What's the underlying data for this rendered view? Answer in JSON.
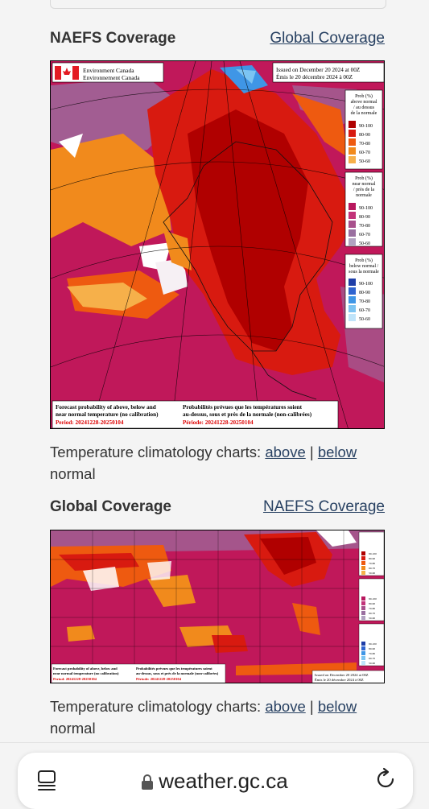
{
  "naefs": {
    "title": "NAEFS Coverage",
    "link": "Global Coverage",
    "map": {
      "agency_en": "Environment Canada",
      "agency_fr": "Environnement Canada",
      "issued_en": "Issued on December 20 2024 at 00Z",
      "issued_fr": "Émis le 20 décembre 2024 à 00Z",
      "footer_en_1": "Forecast probability of above, below and",
      "footer_en_2": "near normal temperature (no calibration)",
      "footer_en_period": "Period: 20241228-20250104",
      "footer_fr_1": "Probabilités prévues que les températures soient",
      "footer_fr_2": "au-dessus, sous et près de la normale (non-calibrées)",
      "footer_fr_period": "Période: 20241228-20250104"
    }
  },
  "global": {
    "title": "Global Coverage",
    "link": "NAEFS Coverage",
    "map": {
      "footer_en_1": "Forecast probability of above, below and",
      "footer_en_2": "near normal temperature (no calibration)",
      "footer_en_period": "Period: 20241228-20250104",
      "footer_fr_1": "Probabilités prévues que les températures soient",
      "footer_fr_2": "au-dessus, sous et près de la normale (non-calibrées)",
      "footer_fr_period": "Période: 20241228-20250104",
      "issued_en": "Issued on December 20 2024 at 00Z",
      "issued_fr": "Émis le 20 décembre 2024 à 00Z"
    }
  },
  "legend": {
    "above": {
      "title_1": "Prob (%)",
      "title_2": "above normal",
      "title_3": "/ au dessus",
      "title_4": "de la normale"
    },
    "near": {
      "title_1": "Prob (%)",
      "title_2": "near normal",
      "title_3": "/ près de la",
      "title_4": "normale"
    },
    "below": {
      "title_1": "Prob (%)",
      "title_2": "below normal /",
      "title_3": "sous la normale"
    },
    "ranges": [
      "90-100",
      "80-90",
      "70-80",
      "60-70",
      "50-60"
    ],
    "colors_above": [
      "#b00000",
      "#d81a10",
      "#ee5a10",
      "#f18a1c",
      "#f6b04a"
    ],
    "colors_near": [
      "#b8175e",
      "#c2337a",
      "#a8508c",
      "#9a6fa0",
      "#b1a1c0"
    ],
    "colors_below": [
      "#1e3ea8",
      "#2f64d0",
      "#3f96e6",
      "#7cc4f2",
      "#bfe4fa"
    ]
  },
  "captions": {
    "prefix": "Temperature climatology charts:",
    "above": "above",
    "sep": "|",
    "below": "below",
    "suffix": "normal"
  },
  "browser": {
    "url": "weather.gc.ca"
  },
  "icons": [
    "lock-icon",
    "tabs-icon",
    "reload-icon"
  ]
}
